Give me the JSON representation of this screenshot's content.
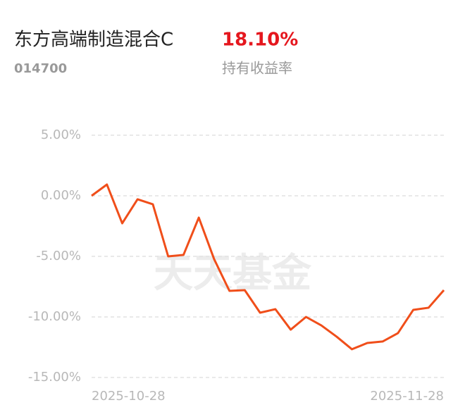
{
  "header": {
    "fund_name": "东方高端制造混合C",
    "return_value": "18.10%",
    "fund_code": "014700",
    "return_label": "持有收益率"
  },
  "chart_data": {
    "type": "line",
    "watermark": "天天基金",
    "categories": [
      "2025-10-28",
      null,
      null,
      null,
      null,
      null,
      null,
      null,
      null,
      null,
      null,
      null,
      null,
      null,
      null,
      null,
      null,
      null,
      null,
      null,
      null,
      null,
      null,
      "2025-11-28"
    ],
    "series": [
      {
        "color": "#f04e1a",
        "values": [
          0,
          0.93,
          -2.27,
          -0.29,
          -0.7,
          -5.0,
          -4.88,
          -1.8,
          -5.23,
          -7.85,
          -7.79,
          -9.65,
          -9.36,
          -11.05,
          -10.0,
          -10.7,
          -11.63,
          -12.67,
          -12.15,
          -12.03,
          -11.34,
          -9.42,
          -9.24,
          -7.79
        ]
      }
    ],
    "ylim": [
      -15,
      5
    ],
    "yticks": [
      {
        "value": 5,
        "label": "5.00%"
      },
      {
        "value": 0,
        "label": "0.00%"
      },
      {
        "value": -5,
        "label": "-5.00%"
      },
      {
        "value": -10,
        "label": "-10.00%"
      },
      {
        "value": -15,
        "label": "-15.00%"
      }
    ],
    "grid": true
  }
}
